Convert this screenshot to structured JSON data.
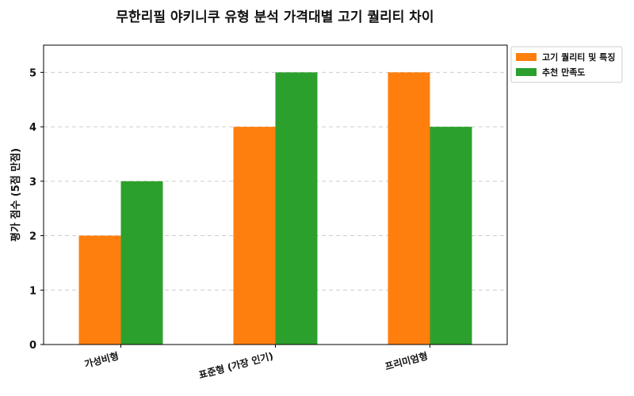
{
  "chart_data": {
    "type": "bar",
    "title": "무한리필 야키니쿠 유형 분석 가격대별 고기 퀄리티 차이",
    "xlabel": "",
    "ylabel": "평가 점수 (5점 만점)",
    "categories": [
      "가성비형",
      "표준형 (가장 인기)",
      "프리미엄형"
    ],
    "series": [
      {
        "name": "고기 퀄리티 및 특징",
        "color": "#ff7f0e",
        "values": [
          2,
          4,
          5
        ]
      },
      {
        "name": "추천 만족도",
        "color": "#2ca02c",
        "values": [
          3,
          5,
          4
        ]
      }
    ],
    "ylim": [
      0,
      5.5
    ],
    "yticks": [
      0,
      1,
      2,
      3,
      4,
      5
    ],
    "grid": "y-dashed",
    "legend": "outside-top-right"
  }
}
